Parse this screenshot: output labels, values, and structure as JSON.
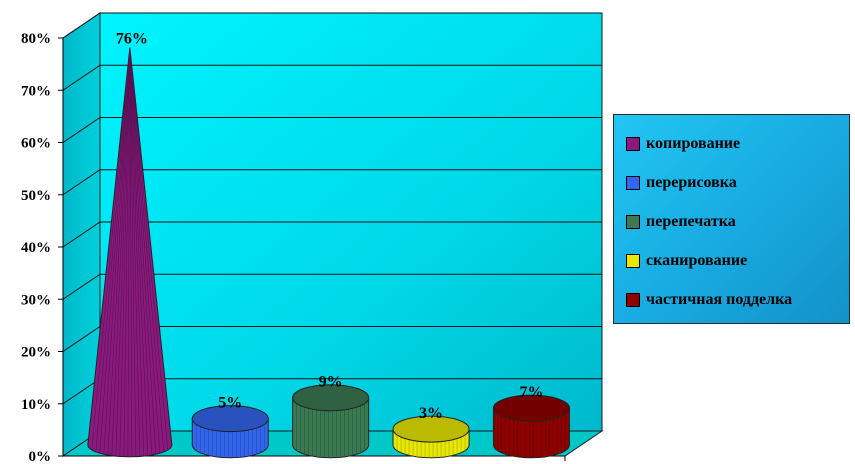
{
  "chart_data": {
    "type": "bar",
    "categories": [
      "копирование",
      "перерисовка",
      "перепечатка",
      "сканирование",
      "частичная подделка"
    ],
    "values": [
      76,
      5,
      9,
      3,
      7
    ],
    "data_labels": [
      "76%",
      "5%",
      "9%",
      "3%",
      "7%"
    ],
    "colors": [
      "#8a1a7e",
      "#3366ee",
      "#3b7a52",
      "#e8e800",
      "#8e0000"
    ],
    "ylim": [
      0,
      80
    ],
    "yticks": [
      "0%",
      "10%",
      "20%",
      "30%",
      "40%",
      "50%",
      "60%",
      "70%",
      "80%"
    ],
    "grid": true,
    "legend_position": "right",
    "style": "3d cone and cylinder",
    "wall_color": "#00e0ee",
    "floor_color": "#00c8c8"
  },
  "legend": {
    "items": [
      {
        "label": "копирование",
        "color": "#8a1a7e"
      },
      {
        "label": "перерисовка",
        "color": "#3366ee"
      },
      {
        "label": "перепечатка",
        "color": "#3b7a52"
      },
      {
        "label": "сканирование",
        "color": "#e8e800"
      },
      {
        "label": "частичная подделка",
        "color": "#8e0000"
      }
    ]
  }
}
